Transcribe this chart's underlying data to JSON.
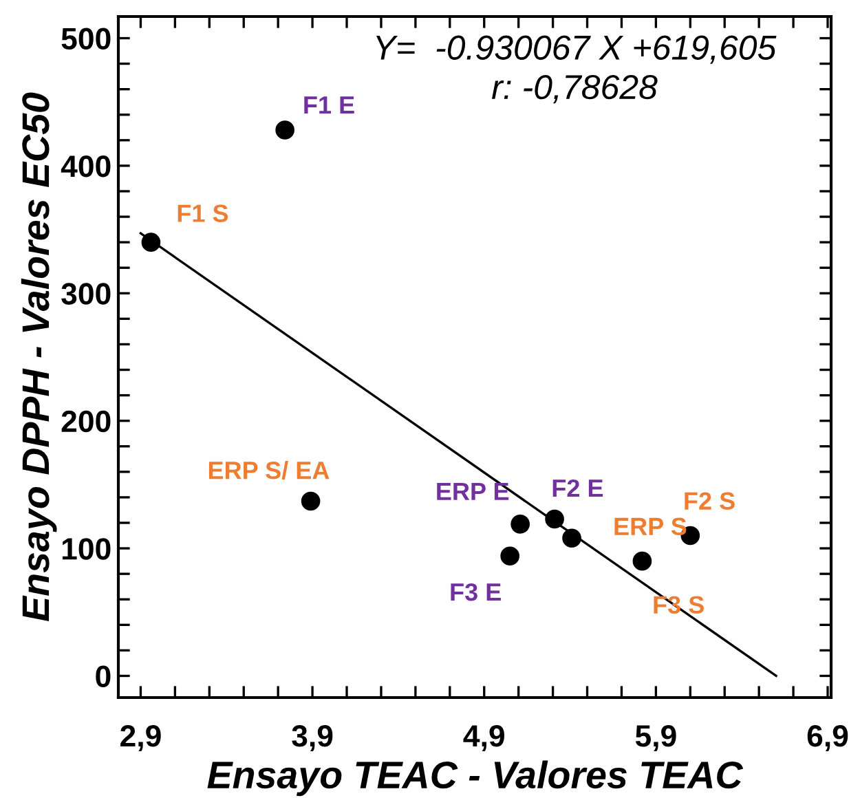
{
  "chart_data": {
    "type": "scatter",
    "xlabel": "Ensayo TEAC - Valores TEAC",
    "ylabel": "Ensayo DPPH - Valores EC50",
    "series": [
      {
        "color": "#000000",
        "x": [
          3.74,
          5.11,
          5.31,
          5.05
        ],
        "values": [
          428,
          119,
          123,
          94
        ],
        "value_labels": [
          "F1 E",
          "ERP E",
          "F2 E",
          "F3 E"
        ]
      },
      {
        "color": "#000000",
        "x": [
          2.96,
          3.89,
          5.41,
          5.82,
          6.1
        ],
        "values": [
          340,
          137,
          108,
          90,
          110
        ],
        "value_labels": [
          "F1 S",
          "ERP S/ EA",
          "ERP S",
          "F3 S",
          "F2 S"
        ]
      },
      {
        "type": "line",
        "color": "#000000",
        "marker": "none",
        "x": [
          2.9,
          6.6
        ],
        "values": [
          347,
          0
        ]
      }
    ],
    "xlim": [
      2.77,
      6.92
    ],
    "ylim": [
      -17,
      517
    ],
    "xticks": [
      {
        "value": 2.9,
        "label": "2,9"
      },
      {
        "value": 3.1,
        "label": null
      },
      {
        "value": 3.3,
        "label": null
      },
      {
        "value": 3.5,
        "label": null
      },
      {
        "value": 3.7,
        "label": null
      },
      {
        "value": 3.9,
        "label": "3,9"
      },
      {
        "value": 4.1,
        "label": null
      },
      {
        "value": 4.3,
        "label": null
      },
      {
        "value": 4.5,
        "label": null
      },
      {
        "value": 4.7,
        "label": null
      },
      {
        "value": 4.9,
        "label": "4,9"
      },
      {
        "value": 5.1,
        "label": null
      },
      {
        "value": 5.3,
        "label": null
      },
      {
        "value": 5.5,
        "label": null
      },
      {
        "value": 5.7,
        "label": null
      },
      {
        "value": 5.9,
        "label": "5,9"
      },
      {
        "value": 6.1,
        "label": null
      },
      {
        "value": 6.3,
        "label": null
      },
      {
        "value": 6.5,
        "label": null
      },
      {
        "value": 6.7,
        "label": null
      },
      {
        "value": 6.9,
        "label": "6,9"
      }
    ],
    "yticks": [
      0,
      {
        "value": 20,
        "label": null
      },
      {
        "value": 40,
        "label": null
      },
      {
        "value": 60,
        "label": null
      },
      {
        "value": 80,
        "label": null
      },
      100,
      {
        "value": 120,
        "label": null
      },
      {
        "value": 140,
        "label": null
      },
      {
        "value": 160,
        "label": null
      },
      {
        "value": 180,
        "label": null
      },
      200,
      {
        "value": 220,
        "label": null
      },
      {
        "value": 240,
        "label": null
      },
      {
        "value": 260,
        "label": null
      },
      {
        "value": 280,
        "label": null
      },
      300,
      {
        "value": 320,
        "label": null
      },
      {
        "value": 340,
        "label": null
      },
      {
        "value": 360,
        "label": null
      },
      {
        "value": 380,
        "label": null
      },
      400,
      {
        "value": 420,
        "label": null
      },
      {
        "value": 440,
        "label": null
      },
      {
        "value": 460,
        "label": null
      },
      {
        "value": 480,
        "label": null
      },
      500
    ],
    "grid": false,
    "marker": "circle",
    "annotations": [
      "Y=  -0.930067 X +619,605",
      "r: -0,78628"
    ]
  }
}
